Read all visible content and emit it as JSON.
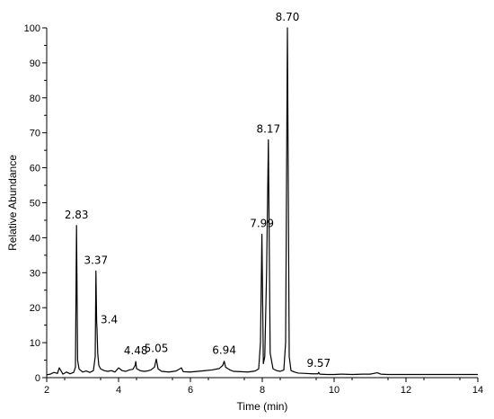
{
  "chart_data": {
    "type": "line",
    "title": "",
    "xlabel": "Time (min)",
    "ylabel": "Relative Abundance",
    "xlim": [
      2,
      14
    ],
    "ylim": [
      0,
      100
    ],
    "x_ticks": [
      "2",
      "4",
      "6",
      "8",
      "10",
      "12",
      "14"
    ],
    "y_ticks": [
      "0",
      "10",
      "20",
      "30",
      "40",
      "50",
      "60",
      "70",
      "80",
      "90",
      "100"
    ],
    "grid": false,
    "legend": "none",
    "series": [
      {
        "x": [
          2.0,
          2.1,
          2.2,
          2.3,
          2.35,
          2.45,
          2.55,
          2.65,
          2.75,
          2.8,
          2.83,
          2.86,
          2.9,
          3.0,
          3.1,
          3.2,
          3.3,
          3.35,
          3.37,
          3.39,
          3.4,
          3.42,
          3.45,
          3.5,
          3.6,
          3.7,
          3.8,
          3.9,
          4.0,
          4.1,
          4.2,
          4.3,
          4.4,
          4.46,
          4.48,
          4.5,
          4.6,
          4.7,
          4.8,
          4.9,
          5.0,
          5.05,
          5.1,
          5.2,
          5.4,
          5.6,
          5.75,
          5.8,
          6.0,
          6.2,
          6.4,
          6.6,
          6.8,
          6.9,
          6.94,
          6.98,
          7.1,
          7.2,
          7.4,
          7.6,
          7.8,
          7.9,
          7.95,
          7.99,
          8.03,
          8.07,
          8.12,
          8.17,
          8.22,
          8.3,
          8.4,
          8.5,
          8.6,
          8.65,
          8.7,
          8.75,
          8.8,
          8.9,
          9.0,
          9.2,
          9.4,
          9.55,
          9.57,
          9.6,
          9.8,
          10.0,
          10.2,
          10.5,
          10.8,
          11.0,
          11.2,
          11.3,
          11.5,
          12.0,
          12.5,
          13.0,
          13.5,
          14.0
        ],
        "y": [
          0.8,
          1.0,
          1.5,
          1.2,
          2.8,
          1.0,
          1.6,
          1.1,
          1.5,
          3.0,
          43.5,
          5.0,
          2.5,
          1.6,
          1.9,
          1.5,
          2.0,
          6.0,
          30.5,
          16.0,
          14.0,
          7.0,
          3.5,
          2.5,
          2.0,
          1.8,
          2.0,
          1.6,
          2.8,
          2.0,
          1.8,
          2.2,
          2.4,
          3.5,
          4.6,
          2.6,
          2.0,
          1.8,
          1.9,
          2.2,
          3.0,
          5.3,
          2.5,
          1.8,
          1.6,
          1.9,
          2.8,
          1.7,
          1.6,
          1.8,
          2.0,
          2.2,
          2.6,
          3.5,
          4.7,
          3.0,
          2.2,
          1.8,
          1.7,
          1.6,
          1.9,
          2.5,
          10.0,
          41.0,
          4.0,
          6.0,
          30.0,
          68.0,
          7.0,
          2.5,
          2.0,
          1.8,
          2.2,
          10.0,
          100.0,
          6.0,
          2.0,
          1.6,
          1.3,
          1.2,
          1.1,
          1.1,
          1.5,
          1.0,
          0.9,
          0.9,
          1.0,
          0.9,
          1.0,
          1.0,
          1.4,
          1.0,
          0.9,
          0.9,
          0.9,
          0.9,
          0.9,
          0.9
        ]
      }
    ],
    "annotations": [
      {
        "text": "2.83",
        "x": 2.83,
        "y": 43.5
      },
      {
        "text": "3.37",
        "x": 3.37,
        "y": 30.5
      },
      {
        "text": "3.4",
        "x": 3.4,
        "y": 14.0
      },
      {
        "text": "4.48",
        "x": 4.48,
        "y": 4.6
      },
      {
        "text": "5.05",
        "x": 5.05,
        "y": 5.3
      },
      {
        "text": "6.94",
        "x": 6.94,
        "y": 4.7
      },
      {
        "text": "7.99",
        "x": 7.99,
        "y": 41.0
      },
      {
        "text": "8.17",
        "x": 8.17,
        "y": 68.0
      },
      {
        "text": "8.70",
        "x": 8.7,
        "y": 100.0
      },
      {
        "text": "9.57",
        "x": 9.57,
        "y": 1.5
      }
    ]
  }
}
